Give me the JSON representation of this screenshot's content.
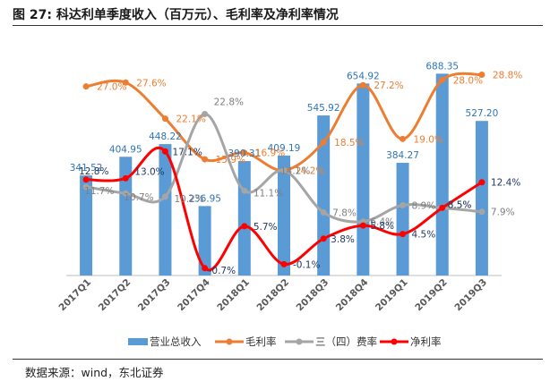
{
  "figure": {
    "title": "图  27:  科达利单季度收入（百万元）、毛利率及净利率情况",
    "source": "数据来源：wind，东北证券"
  },
  "colors": {
    "revenue": "#5b9bd5",
    "gross": "#ed7d31",
    "expense": "#a5a5a5",
    "net": "#ff0000"
  },
  "chart_data": {
    "type": "bar",
    "categories": [
      "2017Q1",
      "2017Q2",
      "2017Q3",
      "2017Q4",
      "2018Q1",
      "2018Q2",
      "2018Q3",
      "2018Q4",
      "2019Q1",
      "2019Q2",
      "2019Q3"
    ],
    "series": [
      {
        "name": "营业总收入",
        "type": "bar",
        "axis": "left",
        "values": [
          341.52,
          404.95,
          448.22,
          236.95,
          390.31,
          409.19,
          545.92,
          654.92,
          384.27,
          688.35,
          527.2
        ],
        "labels": [
          "341.52",
          "404.95",
          "448.22",
          "236.95",
          "390.31",
          "409.19",
          "545.92",
          "654.92",
          "384.27",
          "688.35",
          "527.20"
        ]
      },
      {
        "name": "毛利率",
        "type": "line",
        "axis": "right",
        "values": [
          27.0,
          27.6,
          22.1,
          15.9,
          16.9,
          14.2,
          18.5,
          27.2,
          19.0,
          28.0,
          28.8
        ],
        "labels": [
          "27.0%",
          "27.6%",
          "22.1%",
          "15.9%",
          "16.9%",
          "14.2%",
          "18.5%",
          "27.2%",
          "19.0%",
          "28.0%",
          "28.8%"
        ]
      },
      {
        "name": "三（四）费率",
        "type": "line",
        "axis": "right",
        "values": [
          11.7,
          10.7,
          10.2,
          22.8,
          11.1,
          14.2,
          7.8,
          6.4,
          8.9,
          8.5,
          7.9
        ],
        "labels": [
          "11.7%",
          "10.7%",
          "10.2%",
          "22.8%",
          "11.1%",
          "14.2%",
          "7.8%",
          "6.4%",
          "8.9%",
          "8.5%",
          "7.9%"
        ]
      },
      {
        "name": "净利率",
        "type": "line",
        "axis": "right",
        "values": [
          12.8,
          13.0,
          17.1,
          -0.7,
          5.7,
          -0.1,
          3.8,
          5.8,
          4.5,
          8.5,
          12.4
        ],
        "labels": [
          "12.8%",
          "13.0%",
          "17.1%",
          "-0.7%",
          "5.7%",
          "-0.1%",
          "3.8%",
          "5.8%",
          "4.5%",
          "8.5%",
          "12.4%"
        ]
      }
    ],
    "ylim_left": [
      0,
      720
    ],
    "ylim_right": [
      -4,
      32
    ],
    "grid": false,
    "legend_position": "bottom"
  }
}
